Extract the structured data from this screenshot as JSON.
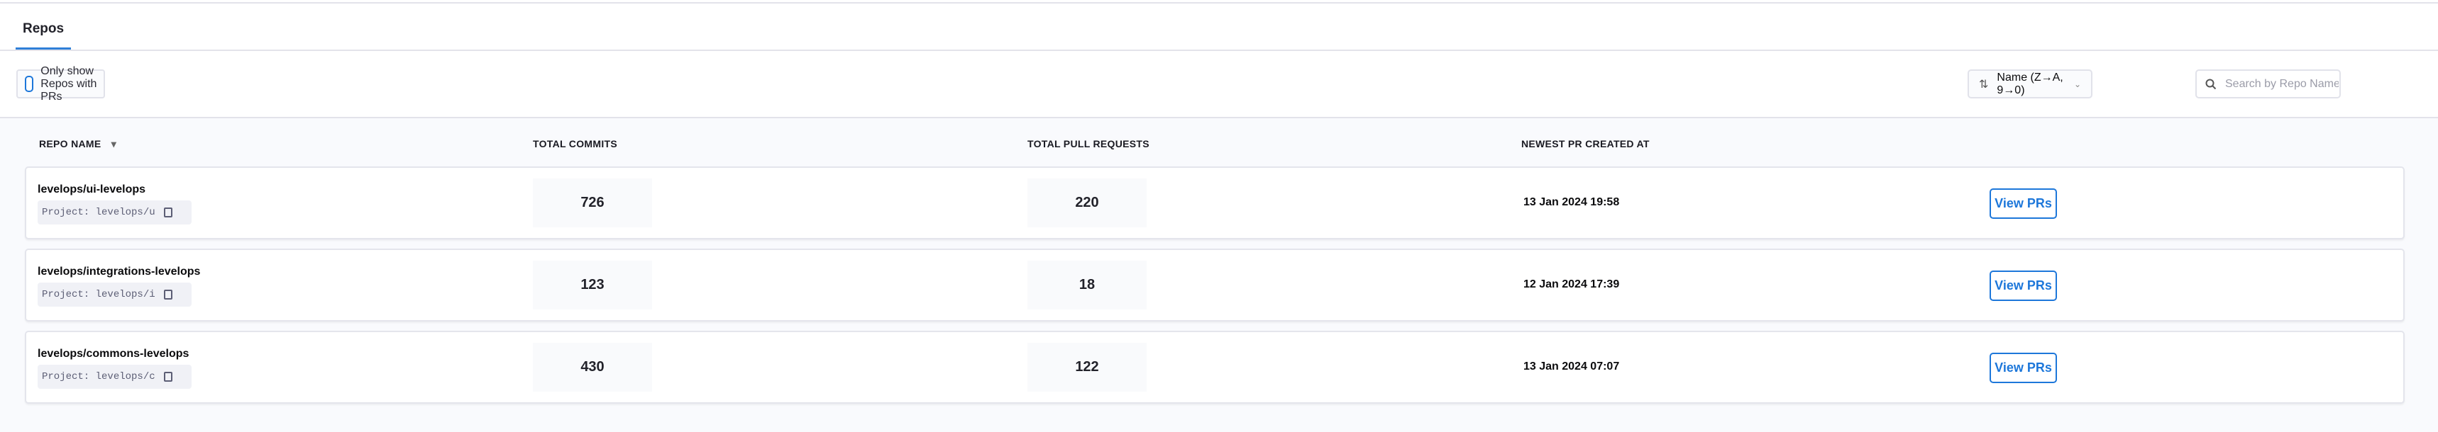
{
  "tabs": [
    {
      "label": "Repos",
      "active": true
    }
  ],
  "filters": {
    "only_prs_label": "Only show Repos with PRs",
    "only_prs_checked": false,
    "sort_value": "Name (Z→A, 9→0)",
    "sort_icon": "⇅",
    "chevron": "⌄",
    "search_placeholder": "Search by Repo Name",
    "search_value": ""
  },
  "table": {
    "headers": [
      "REPO NAME",
      "TOTAL COMMITS",
      "TOTAL PULL REQUESTS",
      "NEWEST PR CREATED AT"
    ],
    "sort_indicator": "▾",
    "rows": [
      {
        "name": "levelops/ui-levelops",
        "project": "Project: levelops/u",
        "commits": "726",
        "prs": "220",
        "newest": "13 Jan 2024 19:58",
        "action": "View PRs"
      },
      {
        "name": "levelops/integrations-levelops",
        "project": "Project: levelops/i",
        "commits": "123",
        "prs": "18",
        "newest": "12 Jan 2024 17:39",
        "action": "View PRs"
      },
      {
        "name": "levelops/commons-levelops",
        "project": "Project: levelops/c",
        "commits": "430",
        "prs": "122",
        "newest": "13 Jan 2024 07:07",
        "action": "View PRs"
      }
    ]
  },
  "colors": {
    "accent": "#1d77da",
    "background": "#f9fafd"
  }
}
